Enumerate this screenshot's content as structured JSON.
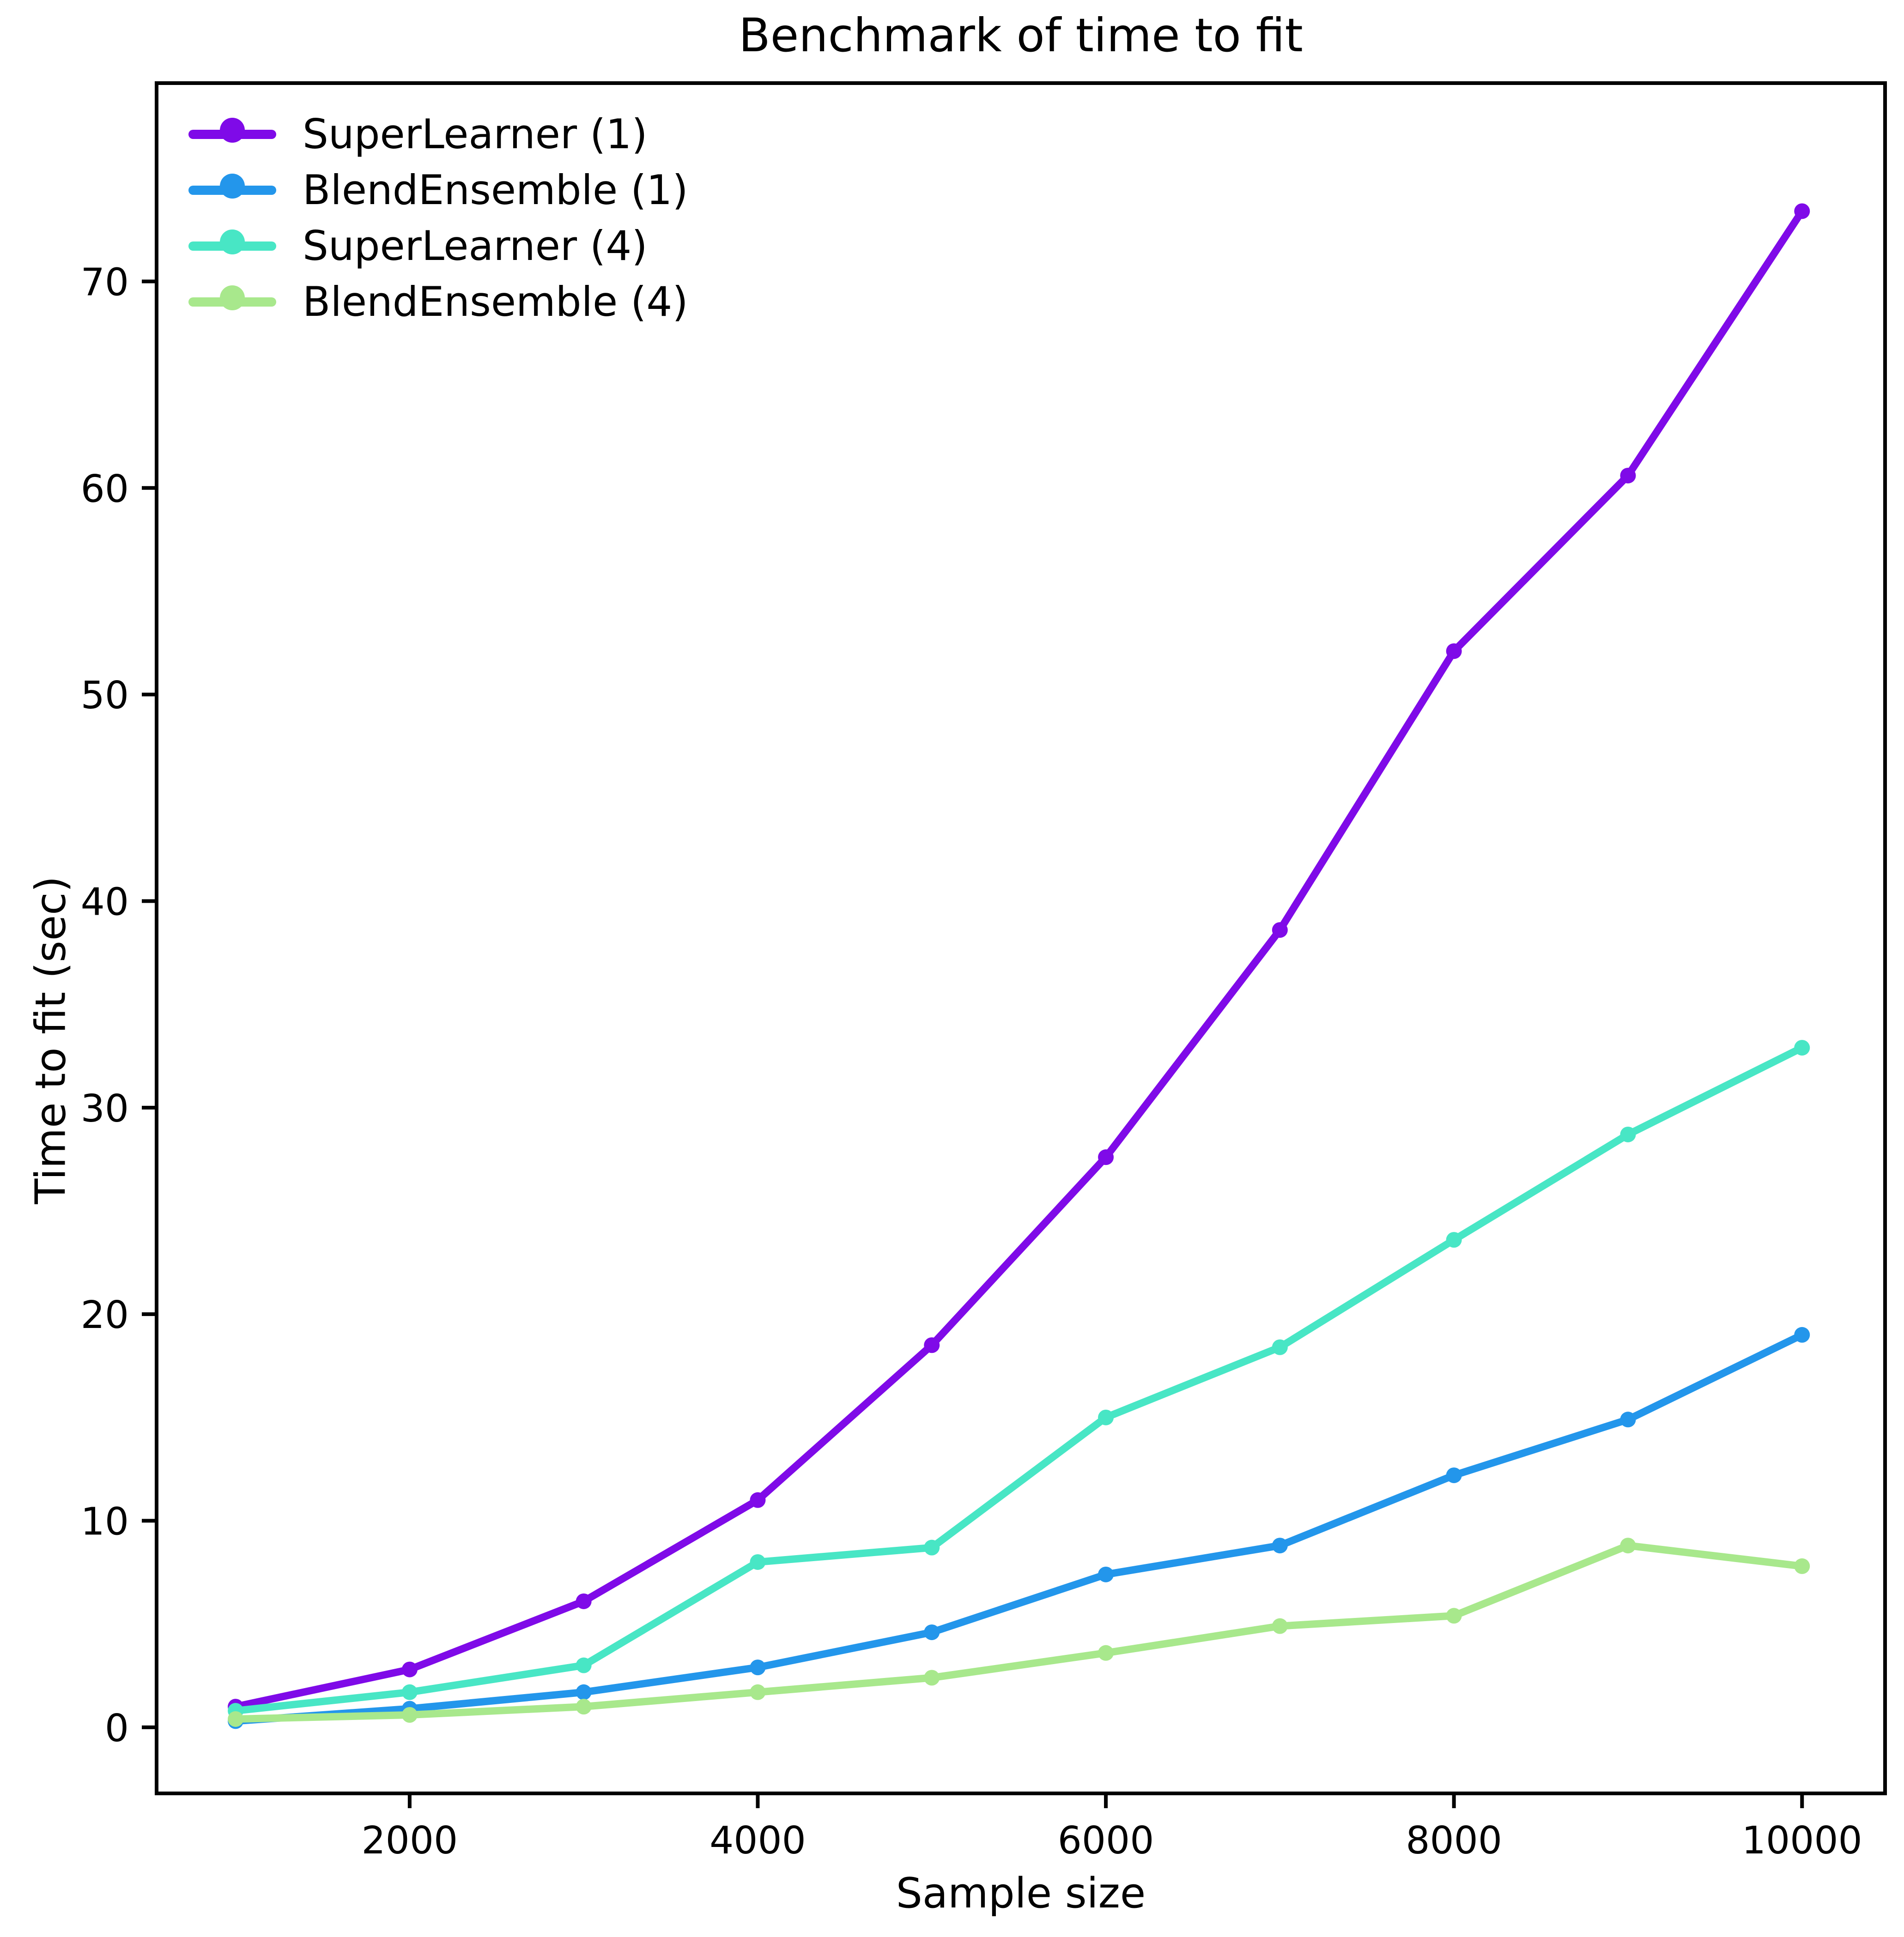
{
  "chart_data": {
    "type": "line",
    "title": "Benchmark of time to fit",
    "xlabel": "Sample size",
    "ylabel": "Time to fit (sec)",
    "x": [
      1000,
      2000,
      3000,
      4000,
      5000,
      6000,
      7000,
      8000,
      9000,
      10000
    ],
    "series": [
      {
        "name": "SuperLearner (1)",
        "color": "#7F0AE8",
        "values": [
          1.0,
          2.8,
          6.1,
          11.0,
          18.5,
          27.6,
          38.6,
          52.1,
          60.6,
          73.4
        ]
      },
      {
        "name": "BlendEnsemble (1)",
        "color": "#2396EB",
        "values": [
          0.3,
          0.9,
          1.7,
          2.9,
          4.6,
          7.4,
          8.8,
          12.2,
          14.9,
          19.0
        ]
      },
      {
        "name": "SuperLearner (4)",
        "color": "#48E6C5",
        "values": [
          0.8,
          1.7,
          3.0,
          8.0,
          8.7,
          15.0,
          18.4,
          23.6,
          28.7,
          32.9
        ]
      },
      {
        "name": "BlendEnsemble (4)",
        "color": "#A8E88C",
        "values": [
          0.4,
          0.6,
          1.0,
          1.7,
          2.4,
          3.6,
          4.9,
          5.4,
          8.8,
          7.8
        ]
      }
    ],
    "x_ticks": [
      2000,
      4000,
      6000,
      8000,
      10000
    ],
    "y_ticks": [
      0,
      10,
      20,
      30,
      40,
      50,
      60,
      70
    ],
    "xlim": [
      546,
      10477
    ],
    "ylim": [
      -3.2,
      79.6
    ],
    "legend_position": "upper left",
    "grid": false,
    "marker": "circle",
    "background_color": "#ffffff",
    "axis_color": "#000000"
  }
}
